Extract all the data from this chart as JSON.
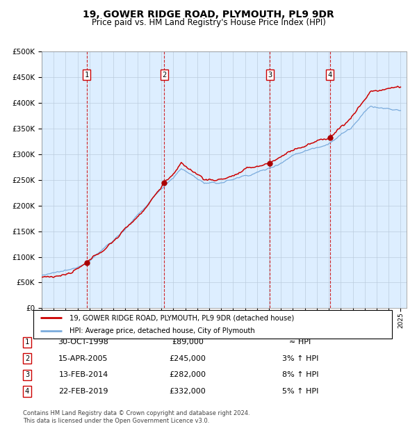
{
  "title1": "19, GOWER RIDGE ROAD, PLYMOUTH, PL9 9DR",
  "title2": "Price paid vs. HM Land Registry's House Price Index (HPI)",
  "legend1": "19, GOWER RIDGE ROAD, PLYMOUTH, PL9 9DR (detached house)",
  "legend2": "HPI: Average price, detached house, City of Plymouth",
  "sale_prices": [
    89000,
    245000,
    282000,
    332000
  ],
  "sale_labels": [
    "1",
    "2",
    "3",
    "4"
  ],
  "sale_notes": [
    "≈ HPI",
    "3% ↑ HPI",
    "8% ↑ HPI",
    "5% ↑ HPI"
  ],
  "sale_dates_str": [
    "30-OCT-1998",
    "15-APR-2005",
    "13-FEB-2014",
    "22-FEB-2019"
  ],
  "sale_prices_str": [
    "£89,000",
    "£245,000",
    "£282,000",
    "£332,000"
  ],
  "hpi_line_color": "#7aabdc",
  "price_line_color": "#cc0000",
  "dot_color": "#aa0000",
  "vline_color": "#cc0000",
  "background_fill": "#ddeeff",
  "grid_color": "#bbccdd",
  "ylim": [
    0,
    500000
  ],
  "yticks": [
    0,
    50000,
    100000,
    150000,
    200000,
    250000,
    300000,
    350000,
    400000,
    450000,
    500000
  ],
  "footnote1": "Contains HM Land Registry data © Crown copyright and database right 2024.",
  "footnote2": "This data is licensed under the Open Government Licence v3.0."
}
